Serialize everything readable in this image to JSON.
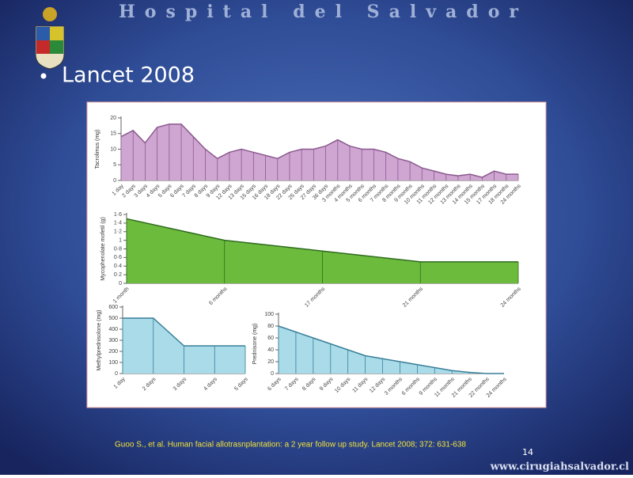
{
  "header": "Hospital del Salvador",
  "bullet": "Lancet 2008",
  "citation": "Guoo S., et al. Human facial allotrasnplantation: a 2 year follow up study. Lancet 2008; 372: 631-638",
  "page_number": "14",
  "website": "www.cirugiahsalvador.cl",
  "chart_data": [
    {
      "type": "area",
      "y_label": "Tacrolimus (mg)",
      "color": "#8b5a8f",
      "fill": "#cfa6d2",
      "categories": [
        "1 day",
        "2 days",
        "3 days",
        "4 days",
        "5 days",
        "6 days",
        "7 days",
        "8 days",
        "9 days",
        "12 days",
        "13 days",
        "15 days",
        "16 days",
        "18 days",
        "22 days",
        "25 days",
        "27 days",
        "36 days",
        "3 months",
        "4 months",
        "5 months",
        "6 months",
        "7 months",
        "8 months",
        "9 months",
        "10 months",
        "11 months",
        "12 months",
        "13 months",
        "14 months",
        "15 months",
        "17 months",
        "18 months",
        "24 months"
      ],
      "values": [
        14,
        16,
        12,
        17,
        18,
        18,
        14,
        10,
        7,
        9,
        10,
        9,
        8,
        7,
        9,
        10,
        10,
        11,
        13,
        11,
        10,
        10,
        9,
        7,
        6,
        4,
        3,
        2,
        1.5,
        2,
        1,
        3,
        2,
        2
      ],
      "ylim": [
        0,
        20
      ],
      "yticks": [
        0,
        5,
        10,
        15,
        20
      ]
    },
    {
      "type": "area",
      "y_label": "Mycophenolate mofetil (g)",
      "color": "#2e6b1e",
      "fill": "#6dbb3c",
      "categories": [
        "1 month",
        "6 months",
        "17 months",
        "21 months",
        "24 months"
      ],
      "values": [
        1.5,
        1.0,
        0.75,
        0.5,
        0.5
      ],
      "ylim": [
        0,
        1.6
      ],
      "yticks": [
        0,
        {
          "value": 0.2,
          "label": "0·2"
        },
        {
          "value": 0.4,
          "label": "0·4"
        },
        {
          "value": 0.6,
          "label": "0·6"
        },
        {
          "value": 0.8,
          "label": "0·8"
        },
        1,
        {
          "value": 1.2,
          "label": "1·2"
        },
        {
          "value": 1.4,
          "label": "1·4"
        },
        {
          "value": 1.6,
          "label": "1·6"
        }
      ]
    },
    {
      "type": "area",
      "y_label": "Methylprednisolone (mg)",
      "color": "#3a7f99",
      "fill": "#a9dbe8",
      "categories": [
        "1 day",
        "2 days",
        "3 days",
        "4 days",
        "5 days"
      ],
      "values": [
        500,
        500,
        250,
        250,
        250
      ],
      "ylim": [
        0,
        600
      ],
      "yticks": [
        0,
        100,
        200,
        300,
        400,
        500,
        600
      ]
    },
    {
      "type": "area",
      "y_label": "Prednisone (mg)",
      "color": "#3a7f99",
      "fill": "#a9dbe8",
      "categories": [
        "6 days",
        "7 days",
        "8 days",
        "9 days",
        "10 days",
        "11 days",
        "12 days",
        "3 months",
        "6 months",
        "9 months",
        "11 months",
        "21 months",
        "22 months",
        "24 months"
      ],
      "values": [
        80,
        70,
        60,
        50,
        40,
        30,
        25,
        20,
        15,
        10,
        5,
        2,
        0,
        0
      ],
      "ylim": [
        0,
        100
      ],
      "yticks": [
        0,
        20,
        40,
        60,
        80,
        100
      ]
    }
  ]
}
